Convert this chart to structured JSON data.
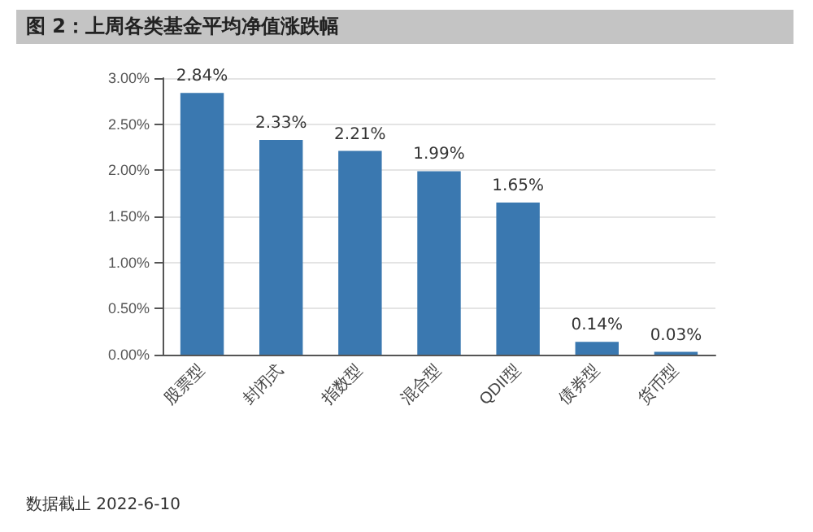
{
  "chart_data": {
    "type": "bar",
    "title": "图 2：上周各类基金平均净值涨跌幅",
    "categories": [
      "股票型",
      "封闭式",
      "指数型",
      "混合型",
      "QDII型",
      "债券型",
      "货币型"
    ],
    "values": [
      2.84,
      2.33,
      2.21,
      1.99,
      1.65,
      0.14,
      0.03
    ],
    "value_labels": [
      "2.84%",
      "2.33%",
      "2.21%",
      "1.99%",
      "1.65%",
      "0.14%",
      "0.03%"
    ],
    "color": "#3a78b0",
    "ylim": [
      0,
      3
    ],
    "yticks": [
      {
        "value": 0,
        "label": "0.00%"
      },
      {
        "value": 0.5,
        "label": "0.50%"
      },
      {
        "value": 1,
        "label": "1.00%"
      },
      {
        "value": 1.5,
        "label": "1.50%"
      },
      {
        "value": 2,
        "label": "2.00%"
      },
      {
        "value": 2.5,
        "label": "2.50%"
      },
      {
        "value": 3,
        "label": "3.00%"
      }
    ],
    "grid": "y",
    "annotations": [
      "数据截止 2022-6-10"
    ]
  }
}
